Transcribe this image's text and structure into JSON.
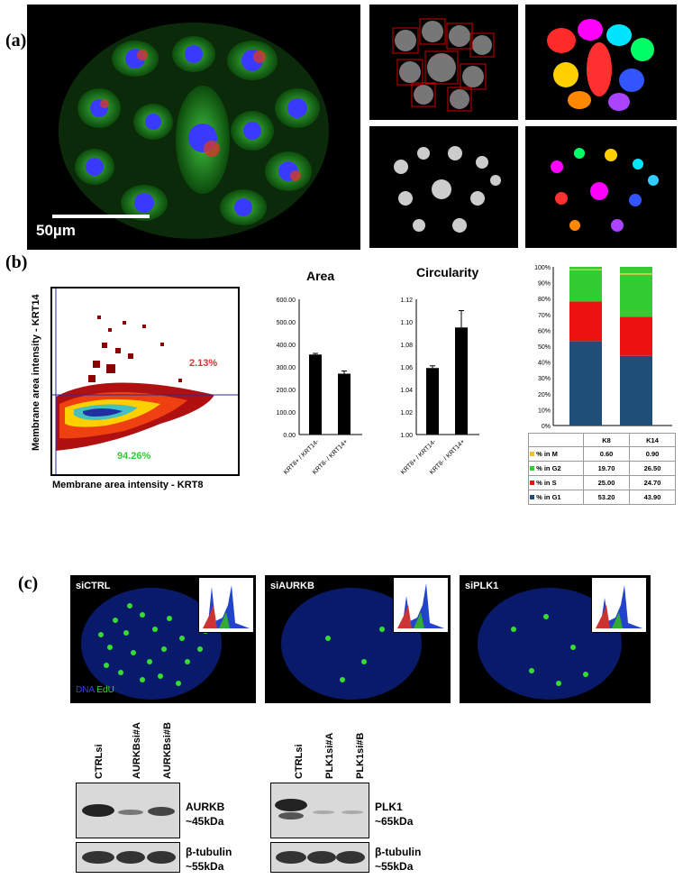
{
  "panels": {
    "a": "(a)",
    "b": "(b)",
    "c": "(c)"
  },
  "a": {
    "scalebar": "50µm"
  },
  "b": {
    "scatter": {
      "ylabel": "Membrane area intensity - KRT14",
      "xlabel": "Membrane area intensity - KRT8",
      "upper_pct": "2.13%",
      "lower_pct": "94.26%"
    },
    "area": {
      "title": "Area",
      "yticks": [
        "600.00",
        "500.00",
        "400.00",
        "300.00",
        "200.00",
        "100.00",
        "0.00"
      ],
      "categories": [
        "KRT8+ / KRT14-",
        "KRT8- / KRT14+"
      ]
    },
    "circ": {
      "title": "Circularity",
      "yticks": [
        "1.12",
        "1.10",
        "1.08",
        "1.06",
        "1.04",
        "1.02",
        "1.00"
      ],
      "categories": [
        "KRT8+ / KRT14-",
        "KRT8- / KRT14+"
      ]
    },
    "stack": {
      "yticks": [
        "100%",
        "90%",
        "80%",
        "70%",
        "60%",
        "50%",
        "40%",
        "30%",
        "20%",
        "10%",
        "0%"
      ],
      "cols": [
        "K8",
        "K14"
      ],
      "rows": [
        {
          "label": "% in M",
          "color": "#f0c030",
          "v1": "0.60",
          "v2": "0.90"
        },
        {
          "label": "% in G2",
          "color": "#33cc33",
          "v1": "19.70",
          "v2": "26.50"
        },
        {
          "label": "% in S",
          "color": "#ee1111",
          "v1": "25.00",
          "v2": "24.70"
        },
        {
          "label": "% in G1",
          "color": "#1f4e79",
          "v1": "53.20",
          "v2": "43.90"
        }
      ]
    }
  },
  "chart_data": [
    {
      "type": "bar",
      "title": "Area",
      "categories": [
        "KRT8+ / KRT14-",
        "KRT8- / KRT14+"
      ],
      "values": [
        355,
        270
      ],
      "errors": [
        5,
        12
      ],
      "ylim": [
        0,
        600
      ]
    },
    {
      "type": "bar",
      "title": "Circularity",
      "categories": [
        "KRT8+ / KRT14-",
        "KRT8- / KRT14+"
      ],
      "values": [
        1.059,
        1.095
      ],
      "errors": [
        0.002,
        0.015
      ],
      "ylim": [
        1.0,
        1.12
      ]
    },
    {
      "type": "bar",
      "categories": [
        "K8",
        "K14"
      ],
      "series": [
        {
          "name": "% in G1",
          "values": [
            53.2,
            43.9
          ]
        },
        {
          "name": "% in S",
          "values": [
            25.0,
            24.7
          ]
        },
        {
          "name": "% in G2",
          "values": [
            19.7,
            26.5
          ]
        },
        {
          "name": "% in M",
          "values": [
            0.6,
            0.9
          ]
        }
      ],
      "ylim": [
        0,
        100
      ]
    }
  ],
  "c": {
    "images": [
      {
        "label": "siCTRL"
      },
      {
        "label": "siAURKB"
      },
      {
        "label": "siPLK1"
      }
    ],
    "legend_dna": "DNA",
    "legend_edu": "EdU",
    "blot1": {
      "lanes": [
        "CTRLsi",
        "AURKBsi#A",
        "AURKBsi#B"
      ],
      "protein": "AURKB",
      "kda": "~45kDa",
      "loading": "β-tubulin",
      "loading_kda": "~55kDa"
    },
    "blot2": {
      "lanes": [
        "CTRLsi",
        "PLK1si#A",
        "PLK1si#B"
      ],
      "protein": "PLK1",
      "kda": "~65kDa",
      "loading": "β-tubulin",
      "loading_kda": "~55kDa"
    }
  }
}
